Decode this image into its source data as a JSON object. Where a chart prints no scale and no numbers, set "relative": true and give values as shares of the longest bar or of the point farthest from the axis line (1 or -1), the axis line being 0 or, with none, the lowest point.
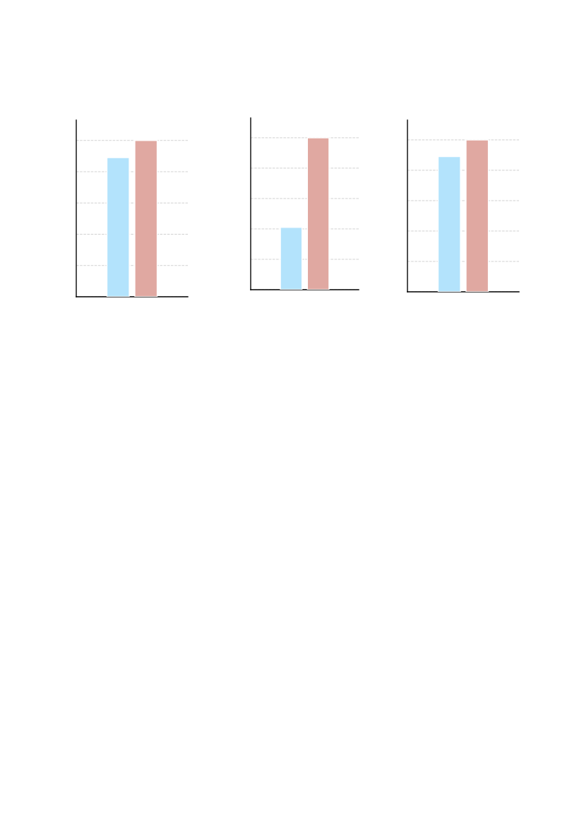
{
  "chart_data": [
    {
      "type": "bar",
      "relative": true,
      "categories": [
        null
      ],
      "grid": "y",
      "series": [
        {
          "color": "#b3e3fc",
          "values": [
            0.89
          ]
        },
        {
          "color": "#e0a8a1",
          "values": [
            1
          ]
        }
      ]
    },
    {
      "type": "bar",
      "relative": true,
      "categories": [
        null
      ],
      "grid": "y",
      "series": [
        {
          "color": "#b3e3fc",
          "values": [
            0.41
          ]
        },
        {
          "color": "#e0a8a1",
          "values": [
            1
          ]
        }
      ]
    },
    {
      "type": "bar",
      "relative": true,
      "categories": [
        null
      ],
      "grid": "y",
      "series": [
        {
          "color": "#b3e3fc",
          "values": [
            0.89
          ]
        },
        {
          "color": "#e0a8a1",
          "values": [
            1
          ]
        }
      ]
    }
  ]
}
